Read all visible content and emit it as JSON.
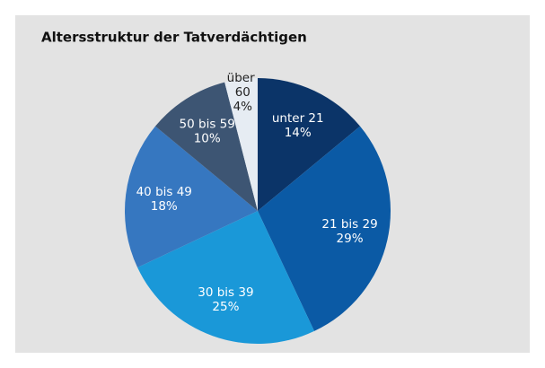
{
  "chart_data": {
    "type": "pie",
    "title": "Altersstruktur der Tatverdächtigen",
    "categories": [
      "unter 21",
      "21 bis 29",
      "30 bis 39",
      "40 bis 49",
      "50 bis 59",
      "über 60"
    ],
    "values": [
      14,
      29,
      25,
      18,
      10,
      4
    ],
    "value_labels": [
      "14%",
      "29%",
      "25%",
      "18%",
      "10%",
      "4%"
    ],
    "colors": [
      "#0b3468",
      "#0b5aa5",
      "#1a98d8",
      "#3677c0",
      "#3d5573",
      "#e6ecf3"
    ]
  }
}
